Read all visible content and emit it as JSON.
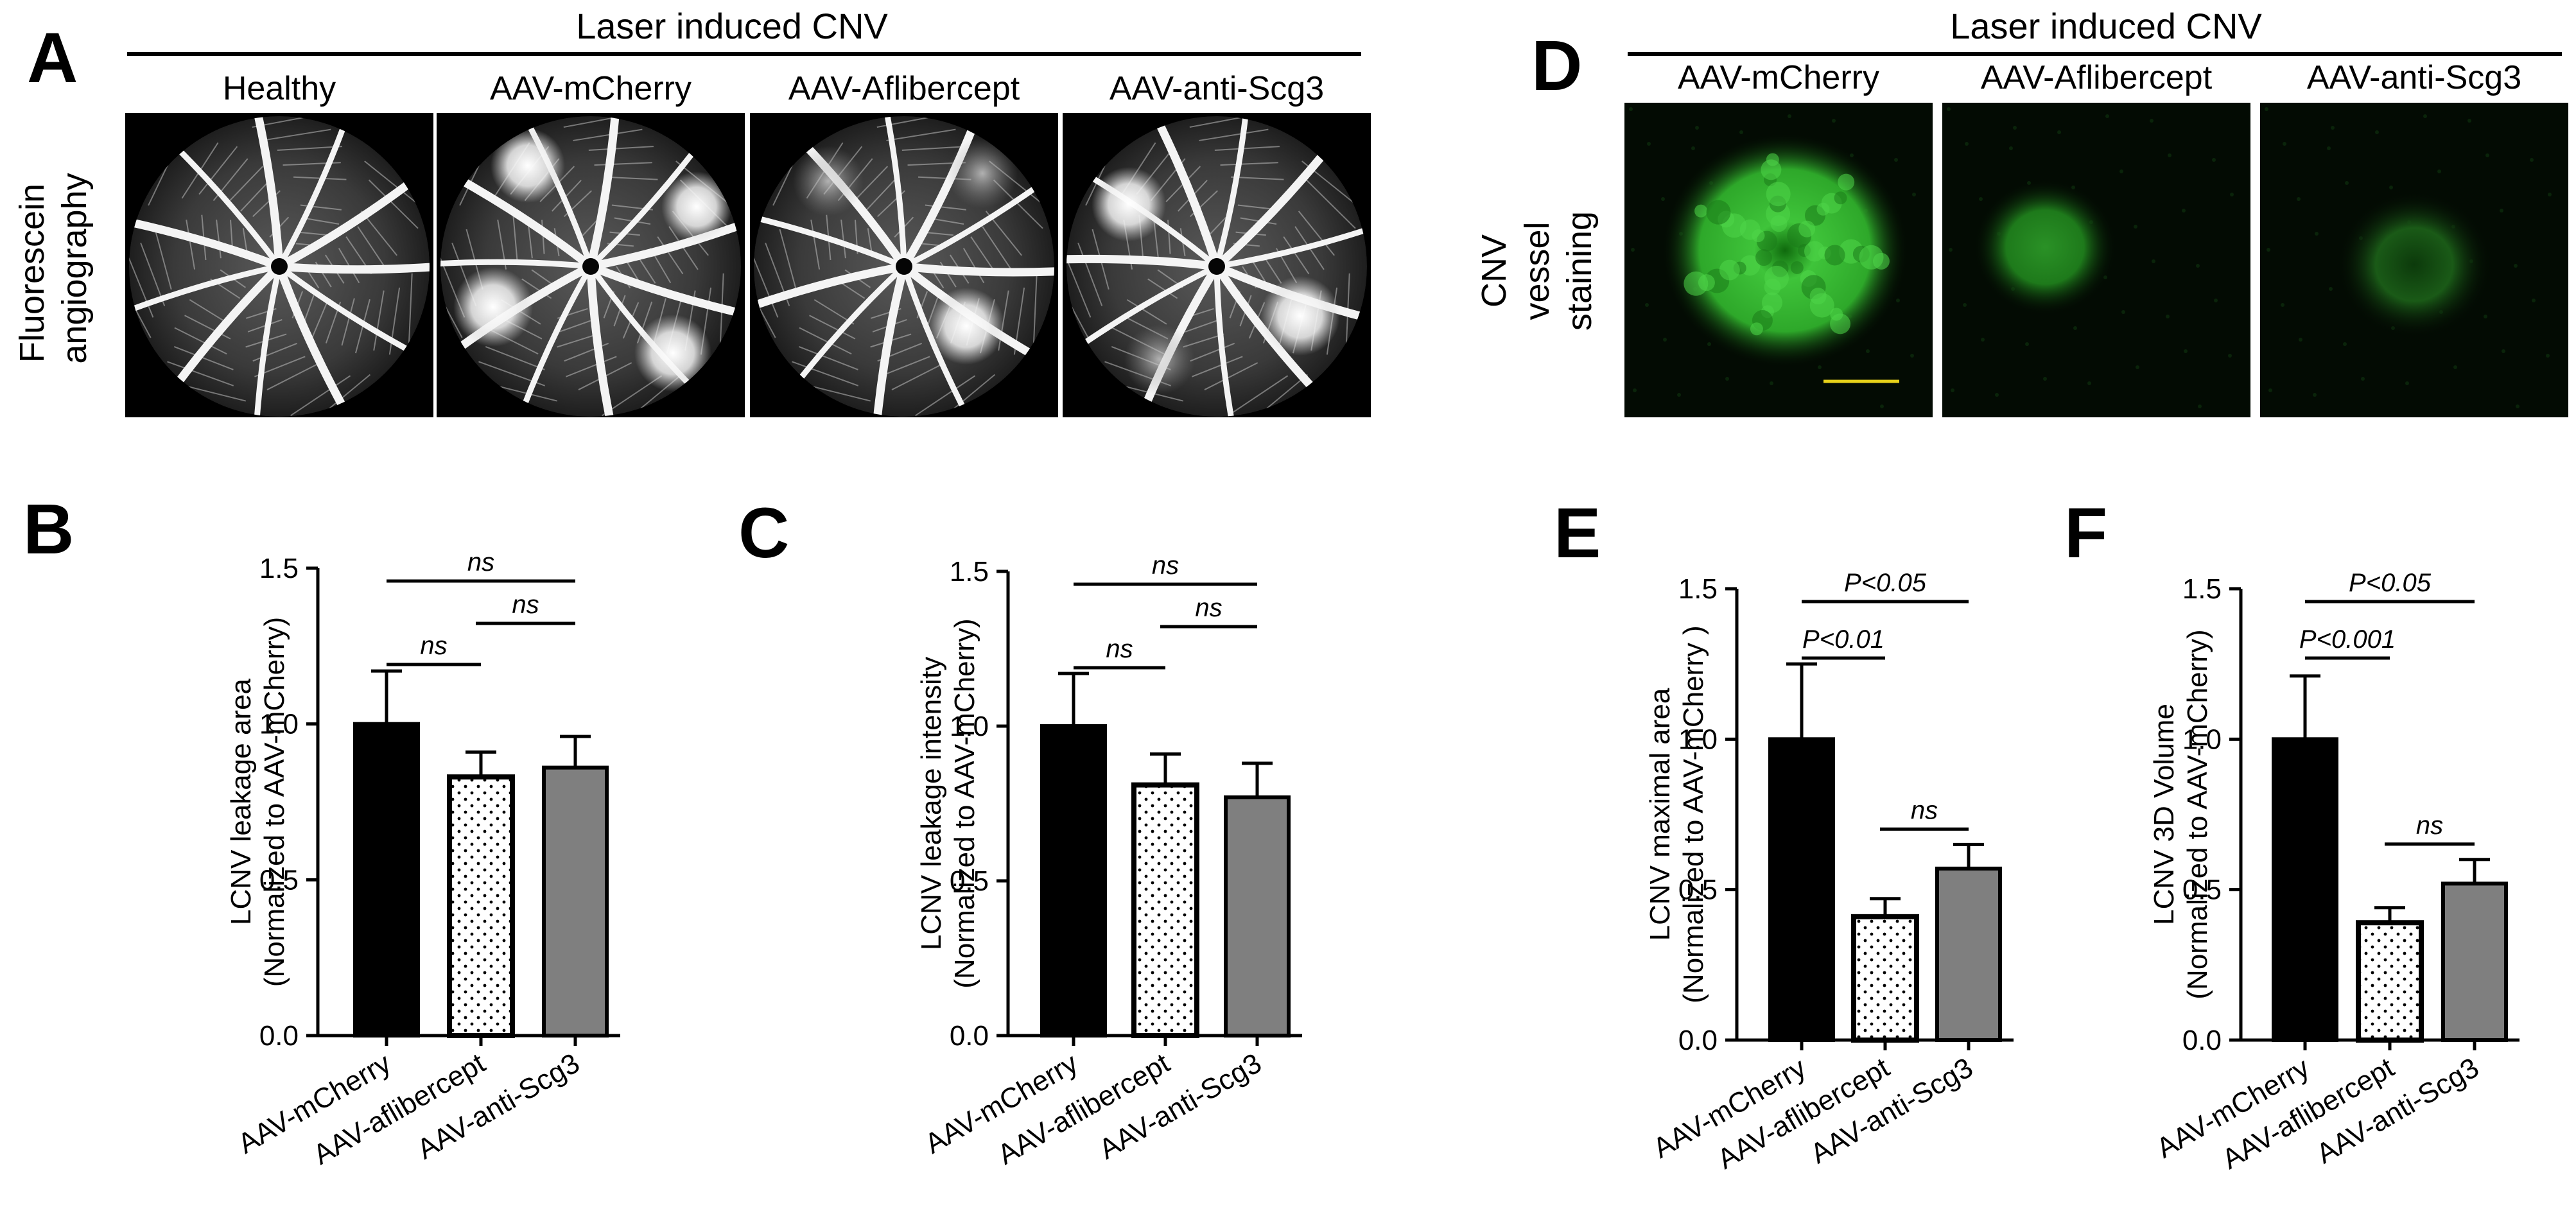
{
  "panel_letters": {
    "a": "A",
    "b": "B",
    "c": "C",
    "d": "D",
    "e": "E",
    "f": "F"
  },
  "panel_a": {
    "header": "Laser induced CNV",
    "row_label_line1": "Fluorescein",
    "row_label_line2": "angiography",
    "columns": [
      "Healthy",
      "AAV-mCherry",
      "AAV-Aflibercept",
      "AAV-anti-Scg3"
    ]
  },
  "panel_d": {
    "header": "Laser induced CNV",
    "row_label_line1": "CNV",
    "row_label_line2": "vessel",
    "row_label_line3": "staining",
    "columns": [
      "AAV-mCherry",
      "AAV-Aflibercept",
      "AAV-anti-Scg3"
    ],
    "stain_color": "#3fc43a",
    "scale_bar_color": "#e8d21a"
  },
  "colors": {
    "black_bar": "#000000",
    "dotted_bar": "#ffffff",
    "grey_bar": "#7f7f7f"
  },
  "chart_data": [
    {
      "panel": "B",
      "type": "bar",
      "ylabel_line1": "LCNV leakage area",
      "ylabel_line2": "(Normalized to AAV-mCherry)",
      "categories": [
        "AAV-mCherry",
        "AAV-aflibercept",
        "AAV-anti-Scg3"
      ],
      "values": [
        1.0,
        0.83,
        0.86
      ],
      "errors": [
        0.17,
        0.08,
        0.1
      ],
      "ylim": [
        0,
        1.5
      ],
      "yticks": [
        "0.0",
        "0.5",
        "1.0",
        "1.5"
      ],
      "comparisons": [
        {
          "from": 0,
          "to": 2,
          "label": "ns"
        },
        {
          "from": 0,
          "to": 1,
          "label": "ns"
        },
        {
          "from": 1,
          "to": 2,
          "label": "ns"
        }
      ]
    },
    {
      "panel": "C",
      "type": "bar",
      "ylabel_line1": "LCNV leakage  intensity",
      "ylabel_line2": "(Normalized to AAV-mCherry)",
      "categories": [
        "AAV-mCherry",
        "AAV-aflibercept",
        "AAV-anti-Scg3"
      ],
      "values": [
        1.0,
        0.81,
        0.77
      ],
      "errors": [
        0.17,
        0.1,
        0.11
      ],
      "ylim": [
        0,
        1.5
      ],
      "yticks": [
        "0.0",
        "0.5",
        "1.0",
        "1.5"
      ],
      "comparisons": [
        {
          "from": 0,
          "to": 2,
          "label": "ns"
        },
        {
          "from": 0,
          "to": 1,
          "label": "ns"
        },
        {
          "from": 1,
          "to": 2,
          "label": "ns"
        }
      ]
    },
    {
      "panel": "E",
      "type": "bar",
      "ylabel_line1": "LCNV maximal area",
      "ylabel_line2": "(Normalized to AAV-mCherry )",
      "categories": [
        "AAV-mCherry",
        "AAV-aflibercept",
        "AAV-anti-Scg3"
      ],
      "values": [
        1.0,
        0.41,
        0.57
      ],
      "errors": [
        0.25,
        0.06,
        0.08
      ],
      "ylim": [
        0,
        1.5
      ],
      "yticks": [
        "0.0",
        "0.5",
        "1.0",
        "1.5"
      ],
      "comparisons": [
        {
          "from": 0,
          "to": 2,
          "label": "P<0.05"
        },
        {
          "from": 0,
          "to": 1,
          "label": "P<0.01"
        },
        {
          "from": 1,
          "to": 2,
          "label": "ns"
        }
      ]
    },
    {
      "panel": "F",
      "type": "bar",
      "ylabel_line1": "LCNV 3D Volume",
      "ylabel_line2": "(Normalized to AAV-mCherry)",
      "categories": [
        "AAV-mCherry",
        "AAV-aflibercept",
        "AAV-anti-Scg3"
      ],
      "values": [
        1.0,
        0.39,
        0.52
      ],
      "errors": [
        0.21,
        0.05,
        0.08
      ],
      "ylim": [
        0,
        1.5
      ],
      "yticks": [
        "0.0",
        "0.5",
        "1.0",
        "1.5"
      ],
      "comparisons": [
        {
          "from": 0,
          "to": 2,
          "label": "P<0.05"
        },
        {
          "from": 0,
          "to": 1,
          "label": "P<0.001"
        },
        {
          "from": 1,
          "to": 2,
          "label": "ns"
        }
      ]
    }
  ]
}
